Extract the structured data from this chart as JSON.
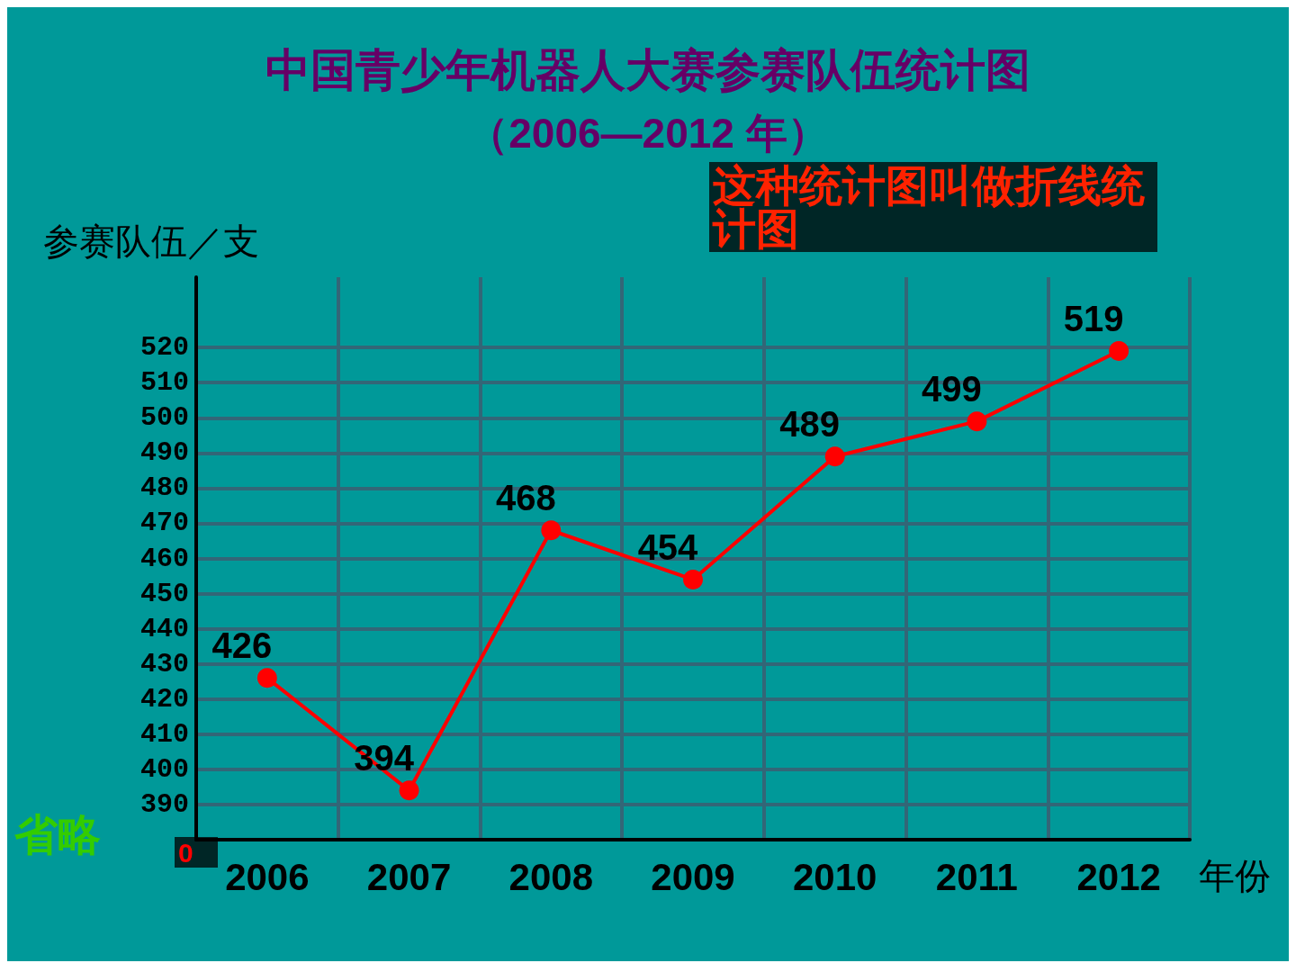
{
  "chart_data": {
    "type": "line",
    "title": "中国青少年机器人大赛参赛队伍统计图",
    "subtitle": "（2006—2012 年）",
    "xlabel": "年份",
    "ylabel": "参赛队伍／支",
    "categories": [
      "2006",
      "2007",
      "2008",
      "2009",
      "2010",
      "2011",
      "2012"
    ],
    "series": [
      {
        "color": "#ff0000",
        "values": [
          426,
          394,
          468,
          454,
          489,
          499,
          519
        ]
      }
    ],
    "ylim": [
      380,
      540
    ],
    "yticks": [
      390,
      400,
      410,
      420,
      430,
      440,
      450,
      460,
      470,
      480,
      490,
      500,
      510,
      520
    ],
    "annotations": [
      "这种统计图叫做折线统计图",
      "省略",
      "0"
    ],
    "data_labels": true,
    "grid": true,
    "marker": "circle",
    "line_style": "solid"
  }
}
